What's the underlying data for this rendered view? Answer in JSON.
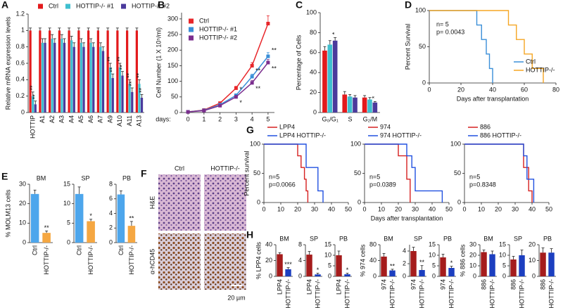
{
  "chart_data": [
    {
      "type": "bar",
      "panel": "A",
      "ylabel": "Relative mRNA expression levels",
      "categories": [
        "HOTTIP",
        "A1",
        "A2",
        "A3",
        "A4",
        "A5",
        "A6",
        "A7",
        "A9",
        "A10",
        "A11",
        "A13"
      ],
      "series": [
        {
          "name": "Ctrl",
          "color": "#e31a1c",
          "values": [
            1,
            1,
            1,
            1,
            1,
            1,
            1,
            1,
            1,
            1,
            1,
            1
          ],
          "errors": [
            0.03,
            0.03,
            0.03,
            0.03,
            0.03,
            0.03,
            0.03,
            0.03,
            0.03,
            0.03,
            0.03,
            0.03
          ]
        },
        {
          "name": "HOTTIP-/- #1",
          "color": "#3fbfcf",
          "values": [
            0.2,
            0.85,
            0.9,
            0.9,
            0.88,
            0.85,
            0.85,
            0.8,
            0.55,
            0.55,
            0.35,
            0.35
          ],
          "errors": [
            0.05,
            0.05,
            0.05,
            0.05,
            0.05,
            0.05,
            0.05,
            0.05,
            0.05,
            0.05,
            0.05,
            0.05
          ],
          "significance": [
            "**",
            null,
            null,
            null,
            null,
            null,
            null,
            null,
            "**",
            "**",
            "**",
            "**"
          ]
        },
        {
          "name": "HOTTIP-/- #2",
          "color": "#4b3a9c",
          "values": [
            0.1,
            0.85,
            0.85,
            0.85,
            0.8,
            0.8,
            0.8,
            0.75,
            0.42,
            0.45,
            0.25,
            0.18
          ],
          "errors": [
            0.04,
            0.05,
            0.05,
            0.05,
            0.05,
            0.05,
            0.05,
            0.05,
            0.05,
            0.05,
            0.05,
            0.04
          ],
          "significance": [
            "**",
            null,
            null,
            null,
            null,
            null,
            null,
            null,
            "**",
            "**",
            "**",
            "**"
          ]
        }
      ],
      "ylim": [
        0,
        1.2
      ],
      "yticks": [
        0,
        0.2,
        0.4,
        0.6,
        0.8,
        1,
        1.2
      ],
      "legend": "top"
    },
    {
      "type": "line",
      "panel": "B",
      "ylabel": "Cell Number (1 X 10⁵/ml)",
      "xlabel": "days:",
      "x": [
        0,
        1,
        2,
        3,
        4,
        5
      ],
      "xlim": [
        -0.4,
        5.4
      ],
      "xticks": [
        0,
        1,
        2,
        3,
        4,
        5
      ],
      "series": [
        {
          "name": "Ctrl",
          "color": "#e8262a",
          "values": [
            2,
            8,
            30,
            78,
            150,
            285
          ],
          "errors": [
            1,
            2,
            4,
            6,
            10,
            25
          ]
        },
        {
          "name": "HOTTIP-/- #1",
          "color": "#3a8fd8",
          "values": [
            2,
            7,
            25,
            55,
            115,
            180
          ],
          "errors": [
            1,
            2,
            3,
            5,
            8,
            12
          ],
          "significance": [
            null,
            null,
            null,
            "*",
            "**",
            "**"
          ]
        },
        {
          "name": "HOTTIP-/- #2",
          "color": "#7b2e8e",
          "values": [
            2,
            6,
            22,
            50,
            95,
            160
          ],
          "errors": [
            1,
            2,
            3,
            5,
            8,
            10
          ],
          "significance": [
            null,
            null,
            null,
            "*",
            "**",
            "**"
          ]
        }
      ],
      "ylim": [
        0,
        320
      ],
      "yticks": [
        0,
        50,
        100,
        150,
        200,
        250,
        300
      ],
      "legend": "upper left"
    },
    {
      "type": "bar",
      "panel": "C",
      "ylabel": "Percentage of Cells",
      "categories": [
        "G₀/G₁",
        "S",
        "G₂/M"
      ],
      "series": [
        {
          "name": "Ctrl",
          "color": "#e31a1c",
          "values": [
            62,
            18,
            15
          ],
          "errors": [
            4,
            3,
            2
          ]
        },
        {
          "name": "HOTTIP-/- #1",
          "color": "#3fbfcf",
          "values": [
            68,
            16,
            13
          ],
          "errors": [
            4,
            2,
            2
          ]
        },
        {
          "name": "HOTTIP-/- #2",
          "color": "#4b3a9c",
          "values": [
            72,
            15,
            10
          ],
          "errors": [
            3,
            2,
            1
          ],
          "significance": [
            "*",
            null,
            "*"
          ]
        }
      ],
      "ylim": [
        0,
        100
      ],
      "yticks": [
        0,
        20,
        40,
        60,
        80,
        100
      ]
    },
    {
      "type": "step",
      "panel": "D",
      "ylabel": "Percent Survival",
      "xlabel": "Days after transplantation",
      "series": [
        {
          "name": "Ctrl",
          "color": "#3a8fd8",
          "x": [
            0,
            30,
            30,
            33,
            33,
            36,
            36,
            38,
            38,
            40,
            40
          ],
          "values": [
            100,
            100,
            80,
            80,
            60,
            60,
            40,
            40,
            20,
            20,
            0
          ]
        },
        {
          "name": "HOTTIP-/-",
          "color": "#f5a623",
          "x": [
            0,
            50,
            50,
            55,
            55,
            60,
            60,
            65,
            65,
            72,
            72
          ],
          "values": [
            100,
            100,
            80,
            80,
            60,
            60,
            40,
            40,
            20,
            20,
            0
          ]
        }
      ],
      "xlim": [
        0,
        80
      ],
      "xticks": [
        0,
        20,
        40,
        60,
        80
      ],
      "ylim": [
        0,
        100
      ],
      "yticks": [
        0,
        50,
        100
      ],
      "annotations": [
        "n= 5",
        "p= 0.0043"
      ],
      "legend": "lower right"
    },
    {
      "type": "bar",
      "panel": "E",
      "title": "BM",
      "ylabel": "% MOLM13 cells",
      "categories": [
        "Ctrl",
        "HOTTIP-/-"
      ],
      "values": [
        25,
        5
      ],
      "errors": [
        2,
        1
      ],
      "significance": [
        null,
        "**"
      ],
      "colors": [
        "#4da6ec",
        "#f5a742"
      ],
      "ylim": [
        0,
        30
      ],
      "yticks": [
        0,
        10,
        20,
        30
      ]
    },
    {
      "type": "bar",
      "title": "SP",
      "categories": [
        "Ctrl",
        "HOTTIP-/-"
      ],
      "values": [
        12.5,
        5.5
      ],
      "errors": [
        1.8,
        0.5
      ],
      "significance": [
        null,
        "*"
      ],
      "colors": [
        "#4da6ec",
        "#f5a742"
      ],
      "ylim": [
        0,
        15
      ],
      "yticks": [
        0,
        5,
        10,
        15
      ]
    },
    {
      "type": "bar",
      "title": "PB",
      "categories": [
        "Ctrl",
        "HOTTIP-/-"
      ],
      "values": [
        6.6,
        2.3
      ],
      "errors": [
        0.5,
        0.6
      ],
      "significance": [
        null,
        "**"
      ],
      "colors": [
        "#4da6ec",
        "#f5a742"
      ],
      "ylim": [
        0,
        8
      ],
      "yticks": [
        0,
        2,
        4,
        6,
        8
      ]
    },
    {
      "type": "image",
      "panel": "F",
      "columns": [
        "Ctrl",
        "HOTTIP-/-"
      ],
      "rows": [
        "H&E",
        "α-hCD45"
      ],
      "scale_bar": "20 µm"
    },
    {
      "type": "step",
      "panel": "G",
      "ylabel": "Percent survival",
      "series": [
        {
          "name": "LPP4",
          "color": "#d62020",
          "x": [
            0,
            20,
            20,
            22,
            22,
            24,
            24,
            25,
            25,
            26,
            26
          ],
          "values": [
            100,
            100,
            80,
            80,
            60,
            60,
            40,
            40,
            20,
            20,
            0
          ]
        },
        {
          "name": "LPP4 HOTTIP-/-",
          "color": "#2050e0",
          "x": [
            0,
            25,
            25,
            32,
            32,
            35,
            35
          ],
          "values": [
            100,
            100,
            60,
            60,
            20,
            20,
            0
          ]
        }
      ],
      "xlim": [
        0,
        50
      ],
      "xticks": [
        0,
        10,
        20,
        30,
        40,
        50
      ],
      "ylim": [
        0,
        100
      ],
      "yticks": [
        0,
        50,
        100
      ],
      "annotations": [
        "n=5",
        "p=0.0066"
      ],
      "legend": "top"
    },
    {
      "type": "step",
      "xlabel": "Days after transplantation",
      "series": [
        {
          "name": "974",
          "color": "#d62020",
          "x": [
            0,
            20,
            20,
            25,
            25,
            27,
            27
          ],
          "values": [
            100,
            100,
            80,
            80,
            40,
            40,
            0
          ]
        },
        {
          "name": "974 HOTTIP-/-",
          "color": "#2050e0",
          "x": [
            0,
            25,
            25,
            28,
            28,
            30,
            30,
            46,
            46
          ],
          "values": [
            100,
            100,
            80,
            80,
            60,
            60,
            20,
            20,
            0
          ]
        }
      ],
      "xlim": [
        0,
        50
      ],
      "xticks": [
        0,
        10,
        20,
        30,
        40,
        50
      ],
      "ylim": [
        0,
        100
      ],
      "yticks": [
        0,
        50,
        100
      ],
      "annotations": [
        "n=5",
        "p=0.0389"
      ],
      "legend": "top"
    },
    {
      "type": "step",
      "series": [
        {
          "name": "886",
          "color": "#d62020",
          "x": [
            0,
            35,
            35,
            38,
            38,
            40,
            40
          ],
          "values": [
            100,
            100,
            60,
            60,
            20,
            20,
            0
          ]
        },
        {
          "name": "886 HOTTIP-/-",
          "color": "#2050e0",
          "x": [
            0,
            35,
            35,
            37,
            37,
            41,
            41
          ],
          "values": [
            100,
            100,
            80,
            80,
            40,
            40,
            0
          ]
        }
      ],
      "xlim": [
        0,
        50
      ],
      "xticks": [
        0,
        10,
        20,
        30,
        40,
        50
      ],
      "ylim": [
        0,
        100
      ],
      "yticks": [
        0,
        50,
        100
      ],
      "annotations": [
        "n=5",
        "p=0.8348"
      ],
      "legend": "top"
    },
    {
      "type": "bar",
      "panel": "H",
      "title": "BM",
      "ylabel": "% LPP4 cells",
      "categories": [
        "LPP4",
        "HOTTIP-/-"
      ],
      "values": [
        28,
        9
      ],
      "errors": [
        2,
        2
      ],
      "significance": [
        null,
        "***"
      ],
      "colors": [
        "#a51c1c",
        "#1c3fc0"
      ],
      "ylim": [
        0,
        40
      ],
      "yticks": [
        0,
        20,
        40
      ]
    },
    {
      "type": "bar",
      "title": "SP",
      "categories": [
        "LPP4",
        "HOTTIP-/-"
      ],
      "values": [
        5.5,
        0.5
      ],
      "errors": [
        0.8,
        0.3
      ],
      "significance": [
        null,
        "*"
      ],
      "colors": [
        "#a51c1c",
        "#1c3fc0"
      ],
      "ylim": [
        0,
        8
      ],
      "yticks": [
        0,
        4,
        8
      ]
    },
    {
      "type": "bar",
      "title": "PB",
      "categories": [
        "LPP4",
        "HOTTIP-/-"
      ],
      "values": [
        10,
        1
      ],
      "errors": [
        2,
        0.5
      ],
      "significance": [
        null,
        "*"
      ],
      "colors": [
        "#a51c1c",
        "#1c3fc0"
      ],
      "ylim": [
        0,
        15
      ],
      "yticks": [
        0,
        5,
        10,
        15
      ]
    },
    {
      "type": "bar",
      "title": "BM",
      "ylabel": "% 974 cells",
      "categories": [
        "974",
        "HOTTIP-/-"
      ],
      "values": [
        50,
        15
      ],
      "errors": [
        8,
        3
      ],
      "significance": [
        null,
        "**"
      ],
      "colors": [
        "#a51c1c",
        "#1c3fc0"
      ],
      "ylim": [
        0,
        80
      ],
      "yticks": [
        0,
        40,
        80
      ]
    },
    {
      "type": "bar",
      "title": "SP",
      "categories": [
        "974",
        "HOTTIP-/-"
      ],
      "values": [
        4,
        1
      ],
      "errors": [
        0.6,
        0.7
      ],
      "significance": [
        null,
        "**"
      ],
      "colors": [
        "#a51c1c",
        "#1c3fc0"
      ],
      "ylim": [
        0,
        5
      ],
      "yticks": [
        0,
        2,
        4
      ]
    },
    {
      "type": "bar",
      "title": "PB",
      "categories": [
        "974",
        "HOTTIP-/-"
      ],
      "values": [
        9,
        4
      ],
      "errors": [
        1.5,
        0.8
      ],
      "significance": [
        null,
        "*"
      ],
      "colors": [
        "#a51c1c",
        "#1c3fc0"
      ],
      "ylim": [
        0,
        15
      ],
      "yticks": [
        0,
        5,
        10,
        15
      ]
    },
    {
      "type": "bar",
      "title": "BM",
      "ylabel": "% 886 cells",
      "categories": [
        "886",
        "HOTTIP-/-"
      ],
      "values": [
        23,
        21
      ],
      "errors": [
        2,
        3
      ],
      "colors": [
        "#a51c1c",
        "#1c3fc0"
      ],
      "ylim": [
        0,
        30
      ],
      "yticks": [
        0,
        10,
        20,
        30
      ]
    },
    {
      "type": "bar",
      "title": "SP",
      "categories": [
        "886",
        "HOTTIP-/-"
      ],
      "values": [
        8,
        10
      ],
      "errors": [
        1.5,
        2.5
      ],
      "colors": [
        "#a51c1c",
        "#1c3fc0"
      ],
      "ylim": [
        0,
        15
      ],
      "yticks": [
        0,
        5,
        10,
        15
      ]
    },
    {
      "type": "bar",
      "title": "PB",
      "categories": [
        "886",
        "HOTTIP-/-"
      ],
      "values": [
        15,
        15
      ],
      "errors": [
        3,
        2.5
      ],
      "colors": [
        "#a51c1c",
        "#1c3fc0"
      ],
      "ylim": [
        0,
        20
      ],
      "yticks": [
        0,
        10,
        20
      ]
    }
  ]
}
